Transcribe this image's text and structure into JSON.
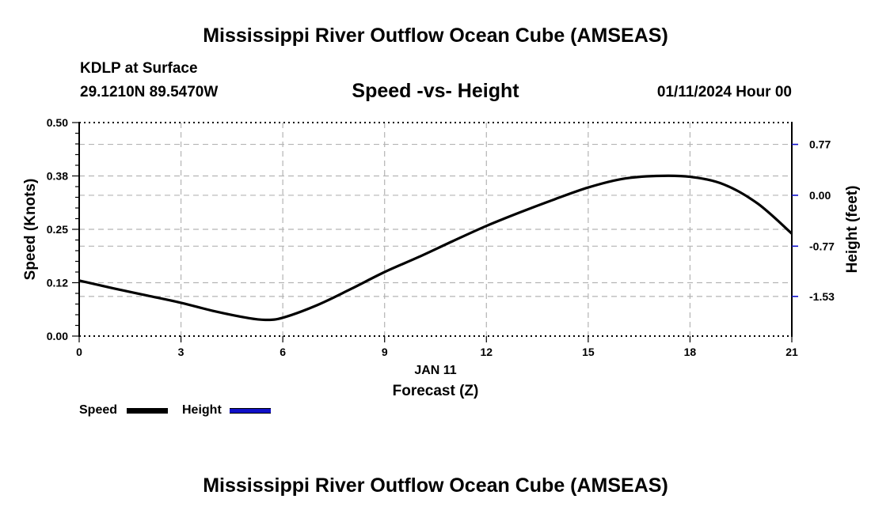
{
  "title": "Mississippi River Outflow Ocean Cube (AMSEAS)",
  "footer_title": "Mississippi River Outflow Ocean Cube (AMSEAS)",
  "station": {
    "name": "KDLP at Surface",
    "coords": "29.1210N  89.5470W"
  },
  "subtitle": "Speed -vs- Height",
  "timestamp": "01/11/2024 Hour 00",
  "colors": {
    "speed": "#000000",
    "height": "#1010c8",
    "grid": "#b4b4b4"
  },
  "legend": {
    "speed_label": "Speed",
    "height_label": "Height"
  },
  "chart_data": {
    "type": "line",
    "title": "Speed -vs- Height",
    "xlabel": "Forecast (Z)",
    "xlabel_date": "JAN 11",
    "ylabel": "Speed (Knots)",
    "y2label": "Height (feet)",
    "xlim": [
      0,
      21
    ],
    "ylim": [
      0,
      0.5
    ],
    "y2lim": [
      -2.13,
      1.1
    ],
    "x_ticks": [
      0,
      3,
      6,
      9,
      12,
      15,
      18,
      21
    ],
    "x_tick_labels": [
      "0",
      "3",
      "6",
      "9",
      "12",
      "15",
      "18",
      "21"
    ],
    "y_ticks": [
      0,
      0.125,
      0.25,
      0.375,
      0.5
    ],
    "y_tick_labels": [
      "0.00",
      "0.12",
      "0.25",
      "0.38",
      "0.50"
    ],
    "y2_ticks": [
      -1.53,
      -0.77,
      0.0,
      0.77
    ],
    "y2_tick_labels": [
      "-1.53",
      "-0.77",
      "0.00",
      "0.77"
    ],
    "grid": true,
    "series": [
      {
        "name": "Speed",
        "axis": "left",
        "x": [
          0,
          1,
          2,
          3,
          4,
          5,
          5.5,
          6,
          7,
          8,
          9,
          10,
          11,
          12,
          13,
          14,
          15,
          16,
          17,
          18,
          19,
          20,
          21
        ],
        "values": [
          0.13,
          0.112,
          0.095,
          0.078,
          0.058,
          0.042,
          0.038,
          0.043,
          0.072,
          0.11,
          0.15,
          0.185,
          0.222,
          0.258,
          0.29,
          0.32,
          0.348,
          0.368,
          0.375,
          0.373,
          0.355,
          0.31,
          0.24
        ]
      },
      {
        "name": "Height",
        "axis": "right",
        "x": [],
        "values": []
      }
    ]
  }
}
